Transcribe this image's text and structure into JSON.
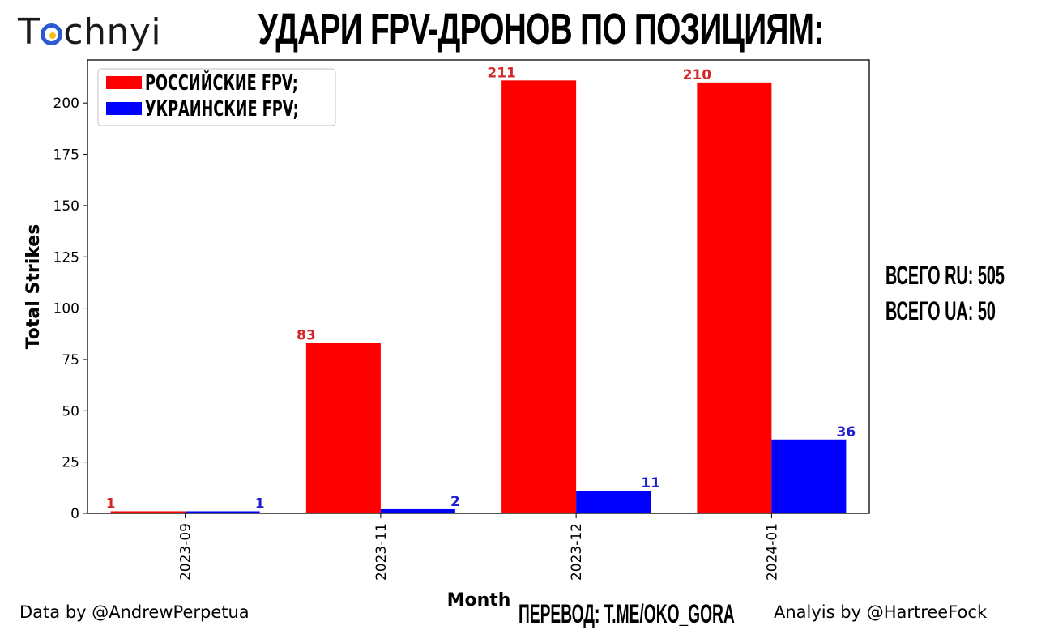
{
  "logo": {
    "prefix": "T",
    "suffix": "chnyi"
  },
  "header": {
    "title": "УДАРИ FPV-ДРОНОВ ПО ПОЗИЦИЯМ:"
  },
  "totals": {
    "ru": "ВСЕГО RU: 505",
    "ua": "ВСЕГО UA: 50"
  },
  "footer": {
    "data_by": "Data by @AndrewPerpetua",
    "translation": "ПЕРЕВОД: T.ME/OKO_GORA",
    "analysis_by": "Analyis by @HartreeFock"
  },
  "colors": {
    "russian": "#ff0000",
    "ukrainian": "#0000ff",
    "russian_label": "#d62728",
    "ukrainian_label": "#1f1fcf"
  },
  "chart_data": {
    "type": "bar",
    "categories": [
      "2023-09",
      "2023-11",
      "2023-12",
      "2024-01"
    ],
    "series": [
      {
        "name": "РОССИЙСКИЕ FPV;",
        "values": [
          1,
          83,
          211,
          210
        ]
      },
      {
        "name": "УКРАИНСКИЕ FPV;",
        "values": [
          1,
          2,
          11,
          36
        ]
      }
    ],
    "xlabel": "Month",
    "ylabel": "Total Strikes",
    "ylim": [
      0,
      221
    ],
    "yticks": [
      0,
      25,
      50,
      75,
      100,
      125,
      150,
      175,
      200
    ],
    "grid": false,
    "legend": "top-left"
  }
}
